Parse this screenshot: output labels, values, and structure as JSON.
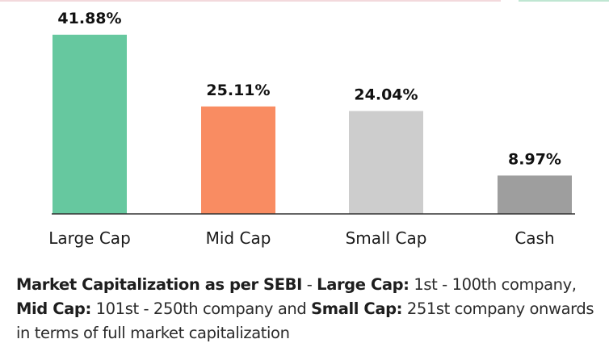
{
  "chart_data": {
    "type": "bar",
    "categories": [
      "Large Cap",
      "Mid Cap",
      "Small Cap",
      "Cash"
    ],
    "values": [
      41.88,
      25.11,
      24.04,
      8.97
    ],
    "value_labels": [
      "41.88%",
      "25.11%",
      "24.04%",
      "8.97%"
    ],
    "colors": [
      "#66c89f",
      "#f98c62",
      "#cdcdcd",
      "#9e9e9e"
    ],
    "title": "",
    "xlabel": "",
    "ylabel": "",
    "ylim": [
      0,
      42
    ],
    "grid": false,
    "legend": "none"
  },
  "footnote": {
    "part1_bold": "Market Capitalization as per SEBI",
    "part2": " - ",
    "part3_bold": "Large Cap:",
    "part4": " 1st - 100th company, ",
    "part5_bold": "Mid Cap:",
    "part6": " 101st - 250th company and ",
    "part7_bold": "Small Cap:",
    "part8": " 251st company onwards in terms of full market capitalization"
  }
}
